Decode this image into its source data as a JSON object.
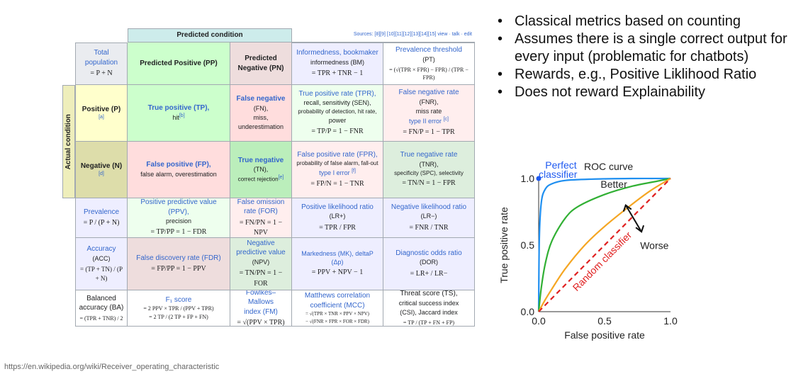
{
  "table": {
    "header_predicted": "Predicted condition",
    "sources": "Sources: [8][9] [10][11][12][13][14][15] view · talk · edit",
    "actual_condition": "Actual condition",
    "total": {
      "title": "Total population",
      "formula": "= P + N"
    },
    "pp": {
      "title": "Predicted Positive (PP)"
    },
    "pn": {
      "title": "Predicted Negative (PN)"
    },
    "bm": {
      "title": "Informedness, bookmaker",
      "sub": "informedness (BM)",
      "formula": "= TPR + TNR − 1"
    },
    "pt": {
      "title": "Prevalence threshold",
      "sub": "(PT)",
      "formula": "= (√(TPR × FPR) − FPR) / (TPR − FPR)"
    },
    "p": {
      "title": "Positive (P)",
      "sup": "[a]"
    },
    "tp": {
      "title": "True positive (TP),",
      "sub": "hit",
      "sup": "[b]"
    },
    "fn": {
      "title": "False negative",
      "sub1": "(FN),",
      "sub2": "miss,",
      "sub3": "underestimation"
    },
    "tpr": {
      "title": "True positive rate (TPR),",
      "line2": "recall, sensitivity (SEN),",
      "line3": "probability of detection, hit rate,",
      "line4": "power",
      "formula": "= TP/P = 1 − FNR"
    },
    "fnr": {
      "title": "False negative rate",
      "sub1": "(FNR),",
      "sub2": "miss rate",
      "sub3": "type II error",
      "sup": "[c]",
      "formula": "= FN/P = 1 − TPR"
    },
    "n": {
      "title": "Negative (N)",
      "sup": "[d]"
    },
    "fp": {
      "title": "False positive (FP),",
      "sub": "false alarm, overestimation"
    },
    "tn": {
      "title": "True negative",
      "sub1": "(TN),",
      "sub2": "correct rejection",
      "sup": "[e]"
    },
    "fpr": {
      "title": "False positive rate (FPR),",
      "line2": "probability of false alarm, fall-out",
      "line3": "type I error",
      "sup": "[f]",
      "formula": "= FP/N = 1 − TNR"
    },
    "tnr": {
      "title": "True negative rate",
      "sub1": "(TNR),",
      "sub2": "specificity (SPC), selectivity",
      "formula": "= TN/N = 1 − FPR"
    },
    "prevalence": {
      "title": "Prevalence",
      "formula": "= P / (P + N)"
    },
    "ppv": {
      "title": "Positive predictive value (PPV),",
      "sub": "precision",
      "formula": "= TP/PP = 1 − FDR"
    },
    "for_": {
      "title": "False omission",
      "sub": "rate (FOR)",
      "formula": "= FN/PN = 1 − NPV"
    },
    "lrp": {
      "title": "Positive likelihood ratio",
      "sub": "(LR+)",
      "formula": "= TPR / FPR"
    },
    "lrn": {
      "title": "Negative likelihood ratio",
      "sub": "(LR−)",
      "formula": "= FNR / TNR"
    },
    "acc": {
      "title": "Accuracy",
      "sub": "(ACC)",
      "formula": "= (TP + TN) / (P + N)"
    },
    "fdr": {
      "title": "False discovery rate (FDR)",
      "formula": "= FP/PP = 1 − PPV"
    },
    "npv": {
      "title": "Negative",
      "line2": "predictive value",
      "sub": "(NPV)",
      "formula": "= TN/PN = 1 − FOR"
    },
    "mk": {
      "title": "Markedness (MK), deltaP (Δp)",
      "formula": "= PPV + NPV − 1"
    },
    "dor": {
      "title": "Diagnostic odds ratio",
      "sub": "(DOR)",
      "formula": "= LR+ / LR−"
    },
    "ba": {
      "title": "Balanced",
      "line2": "accuracy (BA)",
      "formula": "= (TPR + TNR) / 2"
    },
    "f1": {
      "title": "F₁ score",
      "formula1": "= 2 PPV × TPR / (PPV + TPR)",
      "formula2": "= 2 TP / (2 TP + FP + FN)"
    },
    "fm": {
      "title": "Fowlkes–Mallows",
      "sub": "index (FM)",
      "formula": "= √(PPV × TPR)"
    },
    "mcc": {
      "title": "Matthews correlation",
      "line2": "coefficient (MCC)",
      "formula1": "= √(TPR × TNR × PPV × NPV)",
      "formula2": "− √(FNR × FPR × FOR × FDR)"
    },
    "ts": {
      "title": "Threat score (TS),",
      "line2": "critical success index",
      "line3": "(CSI), Jaccard index",
      "formula": "= TP / (TP + FN + FP)"
    }
  },
  "bullets": [
    "Classical metrics based on counting",
    "Assumes there is a single correct output for every input (problematic for chatbots)",
    "Rewards, e.g., Positive Liklihood Ratio",
    "Does not reward Explainability"
  ],
  "chart_data": {
    "type": "line",
    "title": "ROC curve",
    "xlabel": "False positive rate",
    "ylabel": "True positive rate",
    "xlim": [
      0,
      1
    ],
    "ylim": [
      0,
      1
    ],
    "xticks": [
      "0.0",
      "0.5",
      "1.0"
    ],
    "yticks": [
      "0.0",
      "0.5",
      "1.0"
    ],
    "series": [
      {
        "color": "#1f8ff0",
        "x": [
          0,
          0.005,
          0.02,
          0.05,
          0.1,
          0.2,
          0.4,
          0.7,
          1.0
        ],
        "y": [
          0,
          0.55,
          0.82,
          0.92,
          0.96,
          0.985,
          0.995,
          1.0,
          1.0
        ]
      },
      {
        "color": "#31b034",
        "x": [
          0,
          0.02,
          0.05,
          0.1,
          0.2,
          0.3,
          0.5,
          0.7,
          0.9,
          1.0
        ],
        "y": [
          0,
          0.18,
          0.36,
          0.53,
          0.7,
          0.79,
          0.88,
          0.94,
          0.98,
          1.0
        ]
      },
      {
        "color": "#f5a623",
        "x": [
          0,
          0.05,
          0.1,
          0.2,
          0.35,
          0.5,
          0.7,
          0.85,
          1.0
        ],
        "y": [
          0,
          0.09,
          0.17,
          0.32,
          0.5,
          0.64,
          0.8,
          0.91,
          1.0
        ]
      },
      {
        "name": "Random classifier",
        "color": "#e02020",
        "dashed": true,
        "x": [
          0,
          1
        ],
        "y": [
          0,
          1
        ]
      }
    ],
    "annotations": {
      "perfect": {
        "line1": "Perfect",
        "line2": "classifier",
        "x": 0,
        "y": 1,
        "color": "#1f5af0"
      },
      "better": "Better",
      "worse": "Worse",
      "random": "Random classifier"
    }
  },
  "source_url": "https://en.wikipedia.org/wiki/Receiver_operating_characteristic"
}
